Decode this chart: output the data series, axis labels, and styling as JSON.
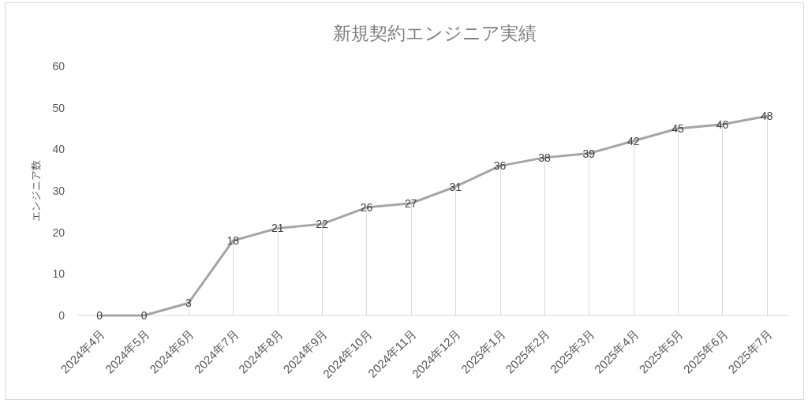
{
  "chart_data": {
    "type": "line",
    "title": "新規契約エンジニア実績",
    "ylabel": "エンジニア数",
    "categories": [
      "2024年4月",
      "2024年5月",
      "2024年6月",
      "2024年7月",
      "2024年8月",
      "2024年9月",
      "2024年10月",
      "2024年11月",
      "2024年12月",
      "2025年1月",
      "2025年2月",
      "2025年3月",
      "2025年4月",
      "2025年5月",
      "2025年6月",
      "2025年7月"
    ],
    "series": [
      {
        "color": "#a5a5a5",
        "values": [
          0,
          0,
          3,
          18,
          21,
          22,
          26,
          27,
          31,
          36,
          38,
          39,
          42,
          45,
          46,
          48
        ]
      }
    ],
    "ylim": [
      0,
      60
    ],
    "yticks": [
      0,
      10,
      20,
      30,
      40,
      50,
      60
    ],
    "grid": false,
    "data_labels": true,
    "marker": "none",
    "line_style": "solid"
  }
}
